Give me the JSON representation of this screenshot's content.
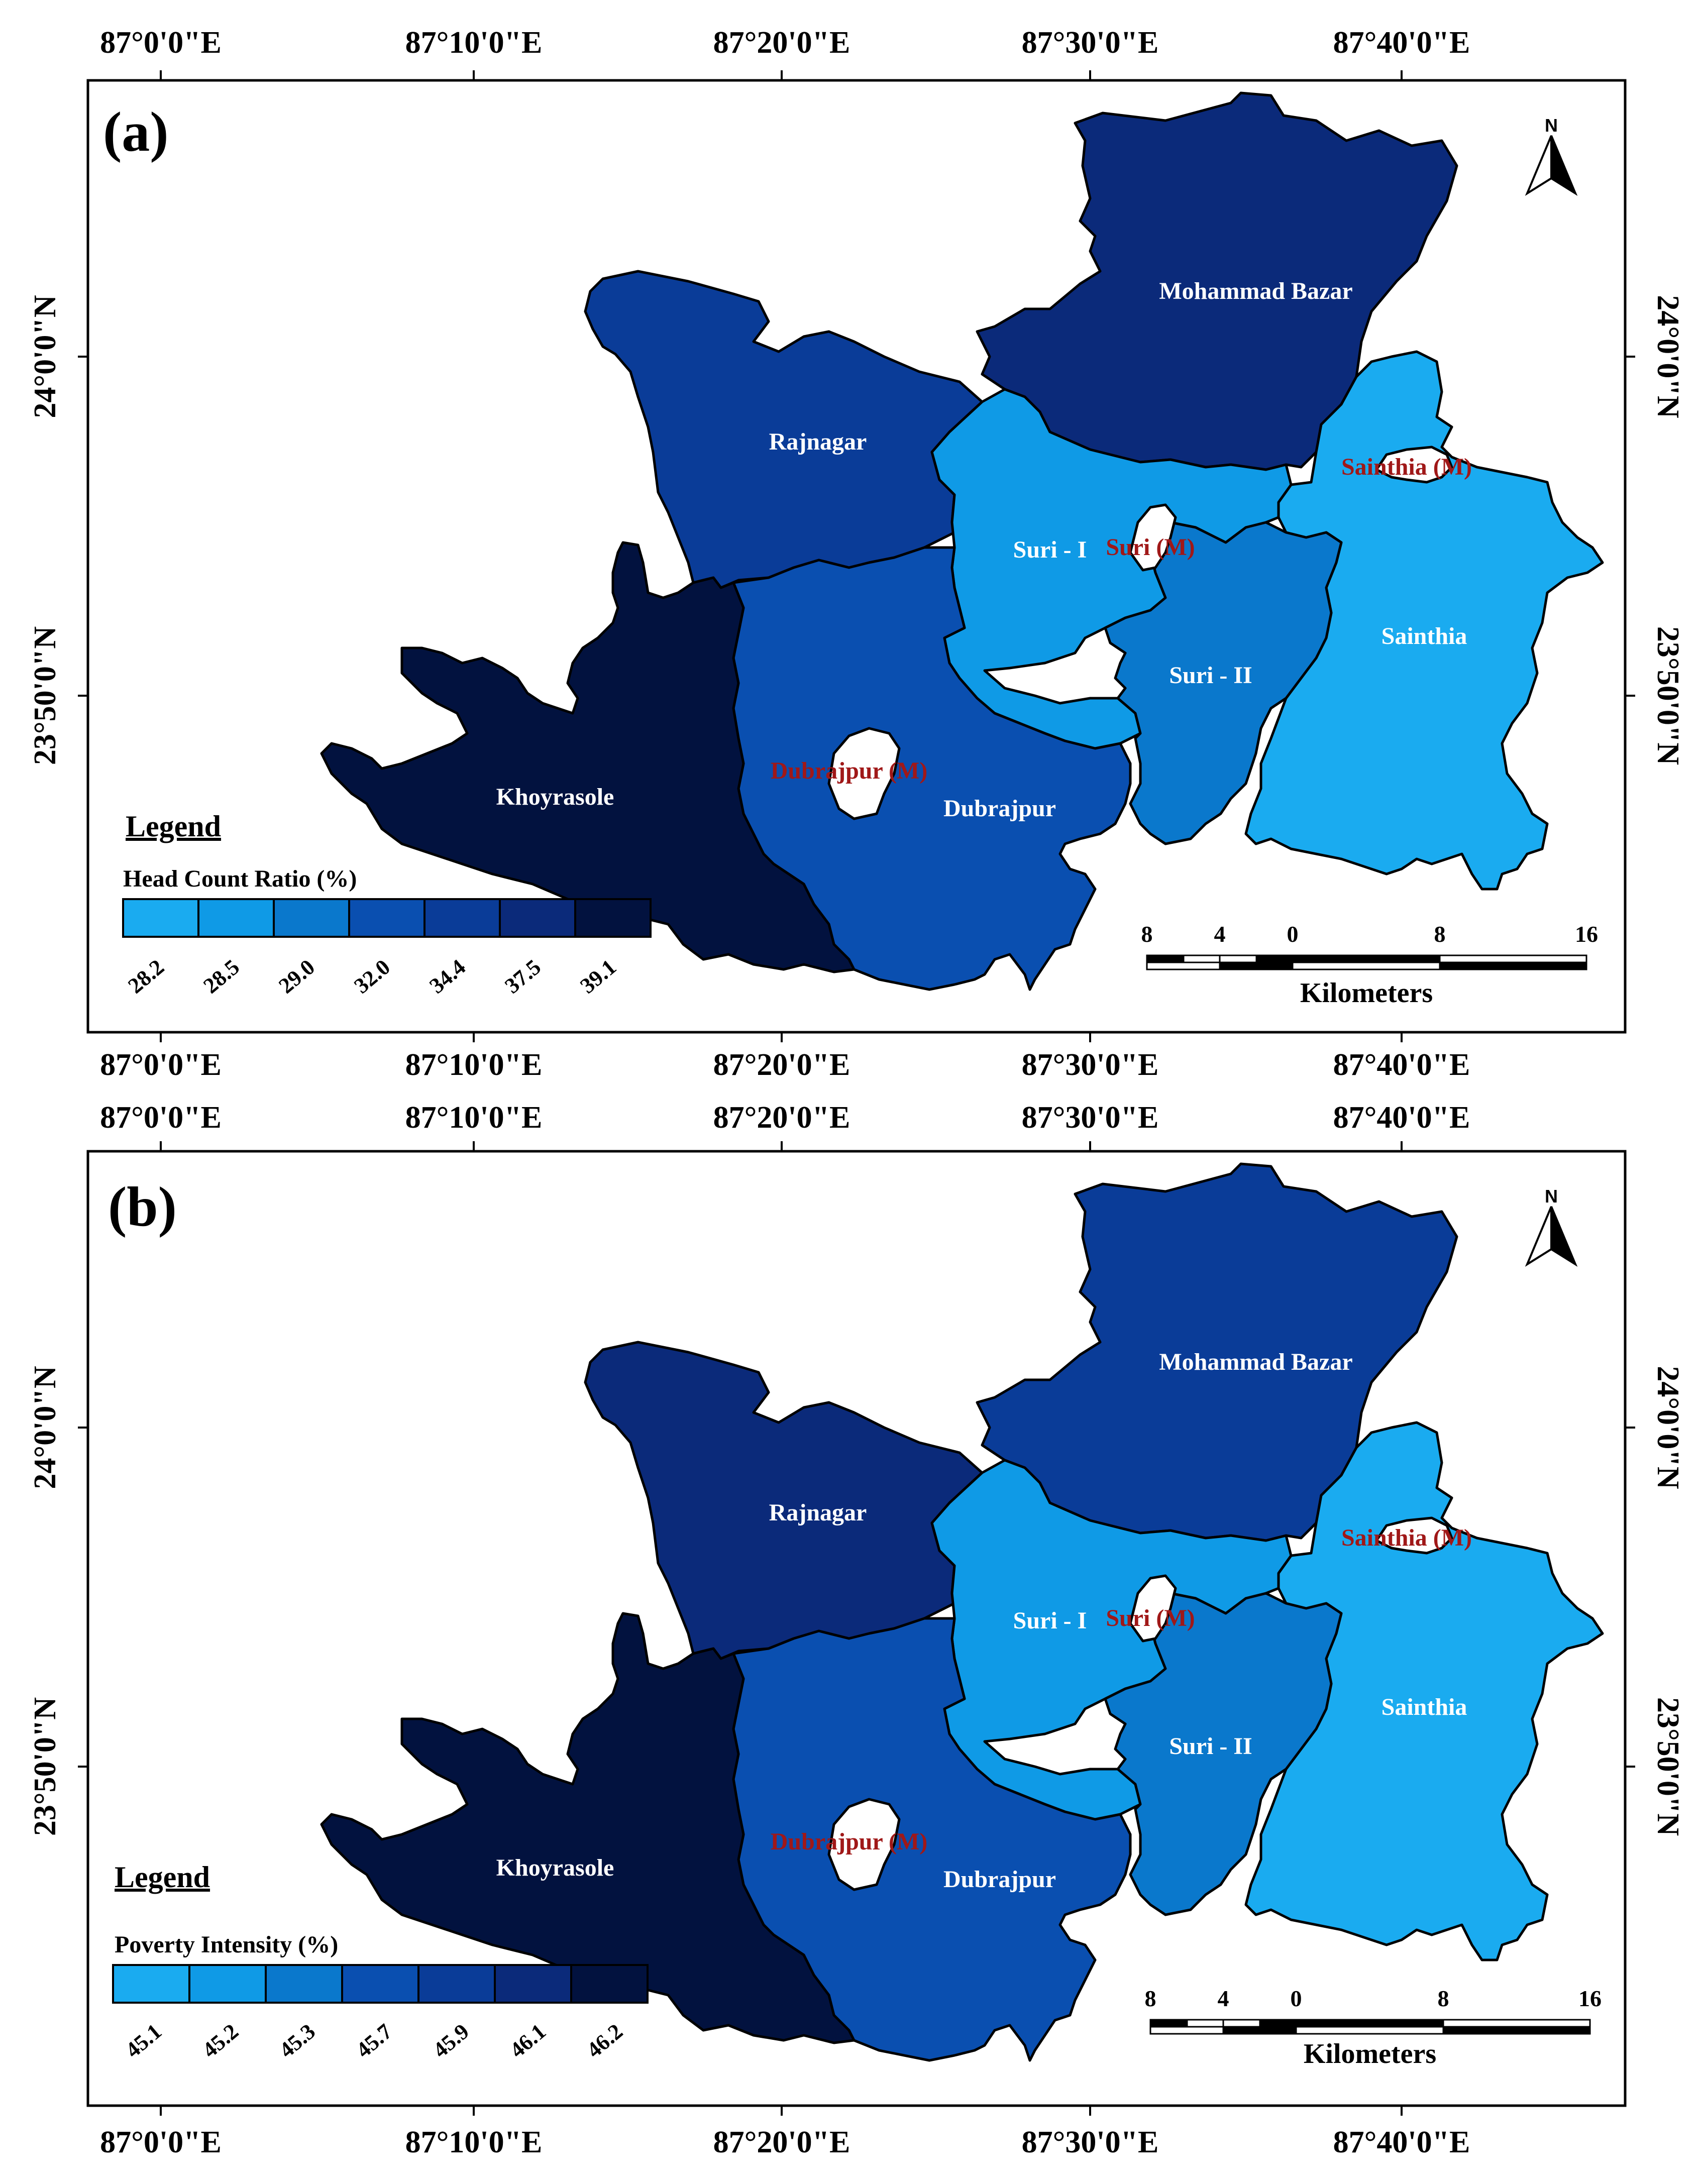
{
  "figure": {
    "panels": [
      {
        "label": "(a)",
        "lon_labels": [
          "87°0'0\"E",
          "87°10'0\"E",
          "87°20'0\"E",
          "87°30'0\"E",
          "87°40'0\"E"
        ],
        "lat_labels": [
          "24°0'0\"N",
          "23°50'0\"N"
        ],
        "regions": {
          "mohammad_bazar": {
            "name": "Mohammad Bazar",
            "color": "#0b2a7a"
          },
          "rajnagar": {
            "name": "Rajnagar",
            "color": "#0a3c98"
          },
          "suri1": {
            "name": "Suri - I",
            "color": "#0f9ae6"
          },
          "suri2": {
            "name": "Suri - II",
            "color": "#0a78cc"
          },
          "sainthia": {
            "name": "Sainthia",
            "color": "#1aabf0"
          },
          "dubrajpur": {
            "name": "Dubrajpur",
            "color": "#0a4fb0"
          },
          "khoyrasole": {
            "name": "Khoyrasole",
            "color": "#02123f"
          }
        },
        "municipalities": [
          "Sainthia (M)",
          "Suri (M)",
          "Dubrajpur (M)"
        ],
        "legend": {
          "title": "Legend",
          "subtitle": "Head Count Ratio (%)",
          "colors": [
            "#1aabf0",
            "#0f9ae6",
            "#0a78cc",
            "#0a4fb0",
            "#0a3c98",
            "#0b2a7a",
            "#02123f"
          ],
          "ticks": [
            "28.2",
            "28.5",
            "29.0",
            "32.0",
            "34.4",
            "37.5",
            "39.1"
          ]
        },
        "scale": {
          "ticks": [
            "8",
            "4",
            "0",
            "8",
            "16"
          ],
          "unit": "Kilometers"
        },
        "north": "N"
      },
      {
        "label": "(b)",
        "lon_labels": [
          "87°0'0\"E",
          "87°10'0\"E",
          "87°20'0\"E",
          "87°30'0\"E",
          "87°40'0\"E"
        ],
        "lat_labels": [
          "24°0'0\"N",
          "23°50'0\"N"
        ],
        "regions": {
          "mohammad_bazar": {
            "name": "Mohammad Bazar",
            "color": "#0a3c98"
          },
          "rajnagar": {
            "name": "Rajnagar",
            "color": "#0b2a7a"
          },
          "suri1": {
            "name": "Suri - I",
            "color": "#0f9ae6"
          },
          "suri2": {
            "name": "Suri - II",
            "color": "#0a78cc"
          },
          "sainthia": {
            "name": "Sainthia",
            "color": "#1aabf0"
          },
          "dubrajpur": {
            "name": "Dubrajpur",
            "color": "#0a4fb0"
          },
          "khoyrasole": {
            "name": "Khoyrasole",
            "color": "#02123f"
          }
        },
        "municipalities": [
          "Sainthia (M)",
          "Suri (M)",
          "Dubrajpur (M)"
        ],
        "legend": {
          "title": "Legend",
          "subtitle": "Poverty Intensity (%)",
          "colors": [
            "#1aabf0",
            "#0f9ae6",
            "#0a78cc",
            "#0a4fb0",
            "#0a3c98",
            "#0b2a7a",
            "#02123f"
          ],
          "ticks": [
            "45.1",
            "45.2",
            "45.3",
            "45.7",
            "45.9",
            "46.1",
            "46.2"
          ]
        },
        "scale": {
          "ticks": [
            "8",
            "4",
            "0",
            "8",
            "16"
          ],
          "unit": "Kilometers"
        },
        "north": "N"
      }
    ]
  }
}
